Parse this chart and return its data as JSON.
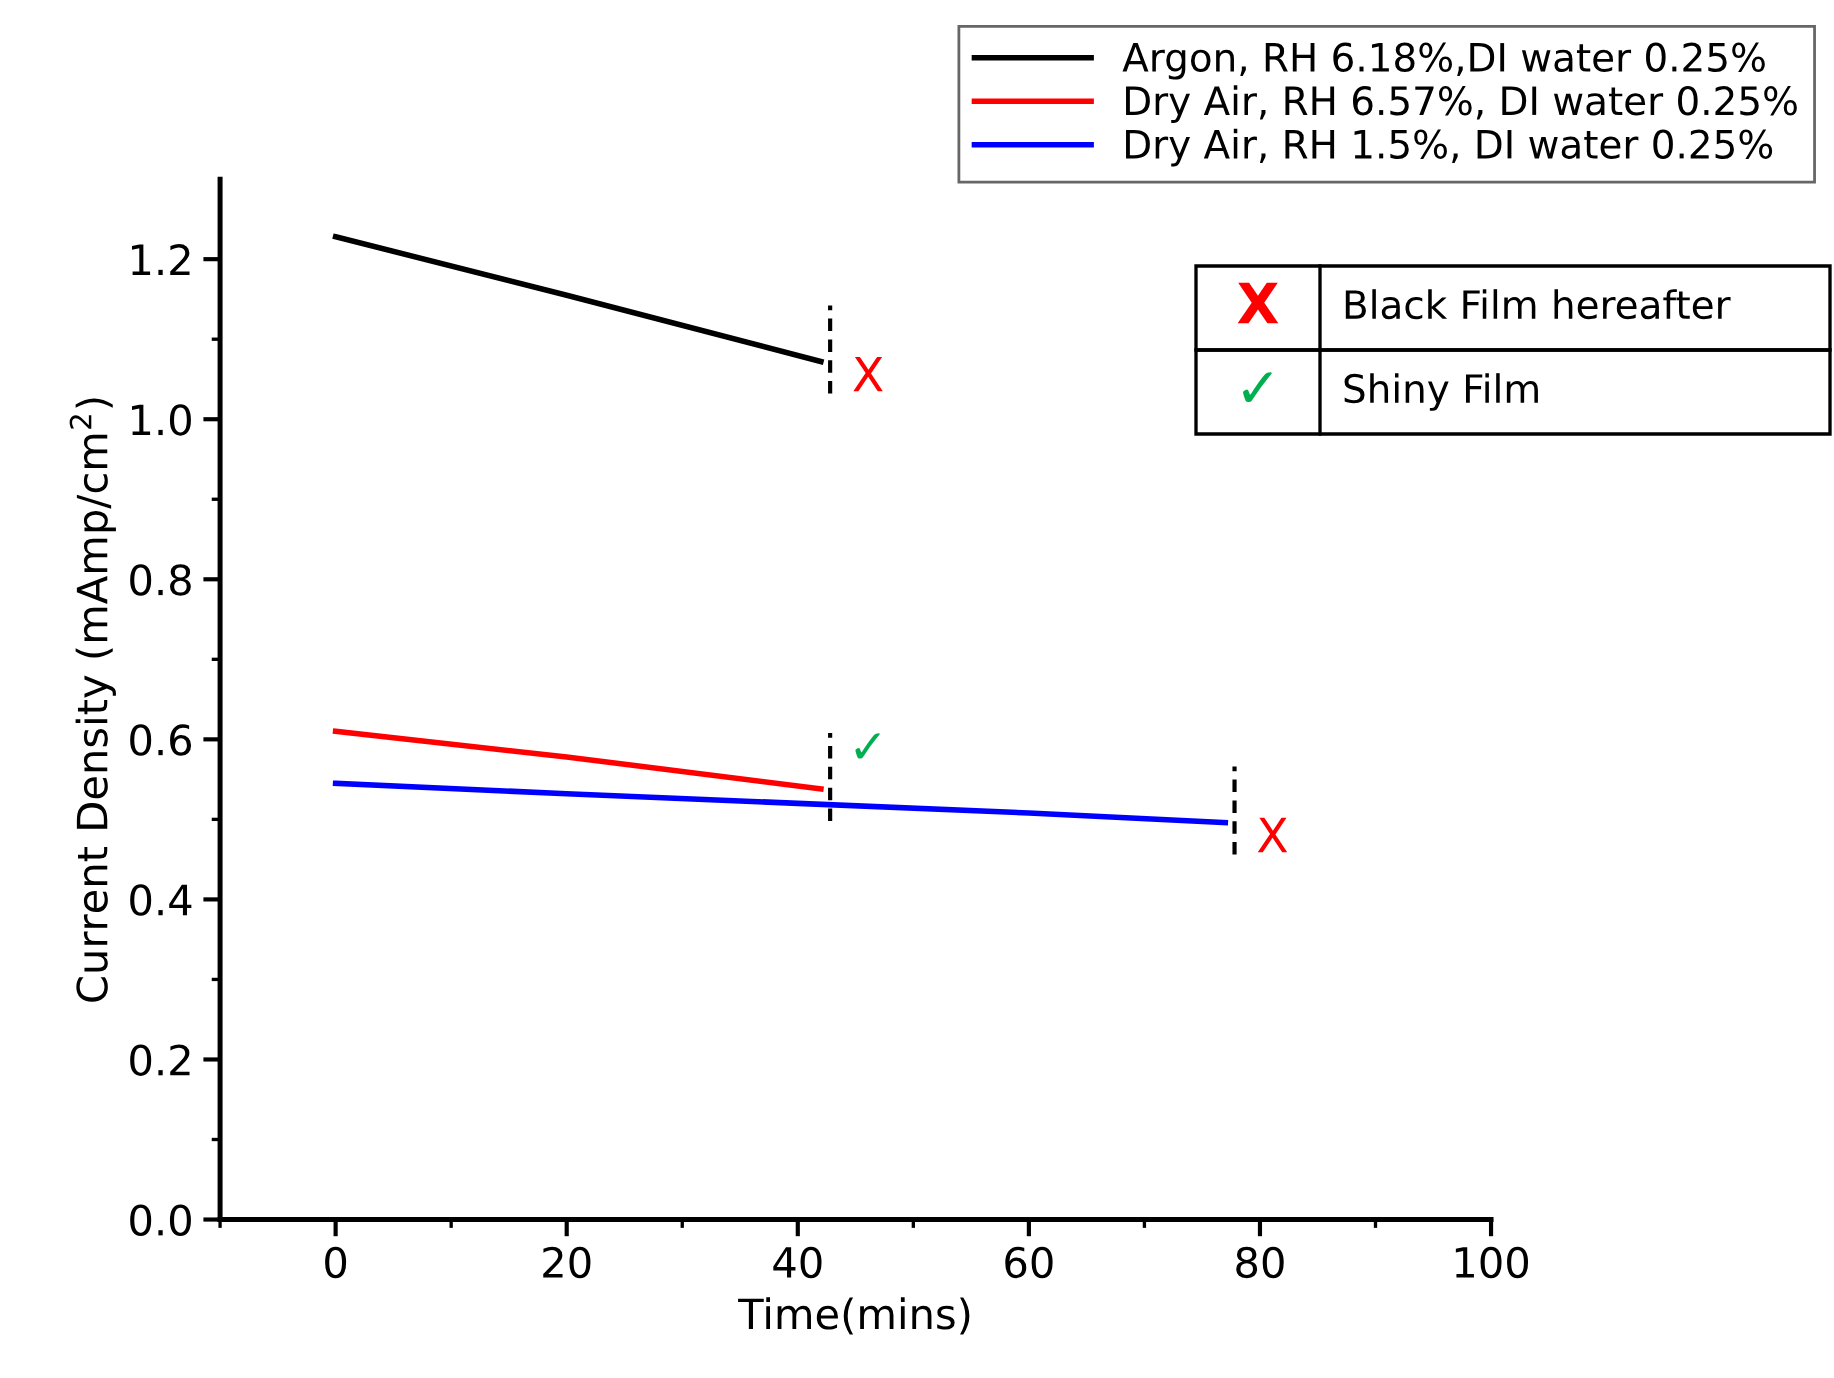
{
  "chart_data": {
    "type": "line",
    "xlabel": "Time(mins)",
    "ylabel": "Current Density (mAmp/cm$^{2}$)",
    "xlim": [
      -10,
      100
    ],
    "ylim": [
      0,
      1.3
    ],
    "xticks": [
      {
        "value": -10,
        "label": null
      },
      0,
      {
        "value": 10,
        "label": null
      },
      20,
      {
        "value": 30,
        "label": null
      },
      40,
      {
        "value": 50,
        "label": null
      },
      60,
      {
        "value": 70,
        "label": null
      },
      80,
      {
        "value": 90,
        "label": null
      },
      100
    ],
    "yticks": [
      "0.0",
      {
        "value": 0.1,
        "label": null
      },
      {
        "value": 0.2,
        "label": "0.2"
      },
      {
        "value": 0.3,
        "label": null
      },
      {
        "value": 0.4,
        "label": "0.4"
      },
      {
        "value": 0.5,
        "label": null
      },
      {
        "value": 0.6,
        "label": "0.6"
      },
      {
        "value": 0.7,
        "label": null
      },
      {
        "value": 0.8,
        "label": "0.8"
      },
      {
        "value": 0.9,
        "label": null
      },
      {
        "value": 1.0,
        "label": "1.0"
      },
      {
        "value": 1.1,
        "label": null
      },
      {
        "value": 1.2,
        "label": "1.2"
      }
    ],
    "series": [
      {
        "name": "Argon, RH 6.18%,DI water 0.25%",
        "color": "#000000",
        "x": [
          0,
          20,
          42
        ],
        "values": [
          1.228,
          1.155,
          1.072
        ]
      },
      {
        "name": "Dry Air, RH 6.57%, DI water 0.25%",
        "color": "#ff0000",
        "x": [
          0,
          20,
          42
        ],
        "values": [
          0.61,
          0.578,
          0.538
        ]
      },
      {
        "name": "Dry Air, RH 1.5%, DI water 0.25%",
        "color": "#0000ff",
        "x": [
          0,
          20,
          40,
          60,
          77
        ],
        "values": [
          0.545,
          0.532,
          0.52,
          0.508,
          0.496
        ]
      }
    ],
    "annotations": [
      "X",
      "✓",
      "X",
      "X",
      "Black Film hereafter",
      "✓",
      "Shiny Film"
    ],
    "legend": "top right",
    "grid": false,
    "marker": "none",
    "line_style": "solid"
  }
}
